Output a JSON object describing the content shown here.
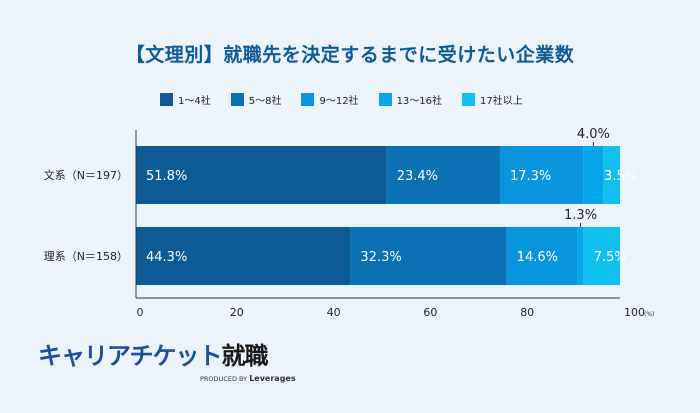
{
  "chart_data": {
    "type": "bar",
    "orientation": "horizontal-stacked",
    "title": "【文理別】就職先を決定するまでに受けたい企業数",
    "categories": [
      "文系（N＝197）",
      "理系（N＝158）"
    ],
    "series": [
      {
        "name": "1〜4社",
        "values": [
          51.8,
          44.3
        ],
        "labels": [
          "51.8%",
          "44.3%"
        ],
        "color": "#0b5a94"
      },
      {
        "name": "5〜8社",
        "values": [
          23.4,
          32.3
        ],
        "labels": [
          "23.4%",
          "32.3%"
        ],
        "color": "#0a72b4"
      },
      {
        "name": "9〜12社",
        "values": [
          17.3,
          14.6
        ],
        "labels": [
          "17.3%",
          "14.6%"
        ],
        "color": "#0995dd"
      },
      {
        "name": "13〜16社",
        "values": [
          4.0,
          1.3
        ],
        "labels": [
          "4.0%",
          "1.3%"
        ],
        "color": "#06a7ea"
      },
      {
        "name": "17社以上",
        "values": [
          3.5,
          7.5
        ],
        "labels": [
          "3.5%",
          "7.5%"
        ],
        "color": "#12c0f0"
      }
    ],
    "xlim": [
      0,
      100
    ],
    "xticks": [
      "0",
      "20",
      "40",
      "60",
      "80",
      "100"
    ],
    "xunit": "(%)",
    "legend": "top"
  },
  "brand": {
    "name_kana": "キャリアチケット",
    "name_kanji": "就職",
    "produced_by": "PRODUCED BY",
    "company": "Leverages"
  }
}
